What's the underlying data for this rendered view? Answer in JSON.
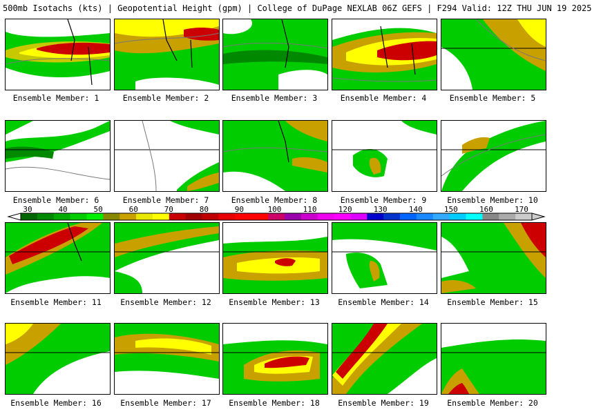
{
  "title": "500mb Isotachs (kts) | Geopotential Height (gpm) | College of DuPage NEXLAB   06Z GEFS | F294 Valid: 12Z THU JUN 19 2025",
  "legend": {
    "labels": [
      "30",
      "40",
      "50",
      "60",
      "70",
      "80",
      "90",
      "100",
      "110",
      "120",
      "130",
      "140",
      "150",
      "160",
      "170"
    ],
    "colors": [
      "#006600",
      "#008800",
      "#00aa00",
      "#00cc00",
      "#00ee00",
      "#888800",
      "#c8a000",
      "#e8e800",
      "#ffff00",
      "#c80000",
      "#a00000",
      "#c00000",
      "#e80000",
      "#ff0000",
      "#ff0000",
      "#cc0066",
      "#9900aa",
      "#cc00cc",
      "#ee00ee",
      "#ff00ff",
      "#dd00ff",
      "#0000cc",
      "#0033cc",
      "#0066ff",
      "#1a88ff",
      "#33aaff",
      "#00ccff",
      "#00ffff",
      "#888888",
      "#aaaaaa",
      "#cccccc"
    ]
  },
  "panels": [
    {
      "label": "Ensemble Member: 1",
      "intensity": 0.9
    },
    {
      "label": "Ensemble Member: 2",
      "intensity": 0.8
    },
    {
      "label": "Ensemble Member: 3",
      "intensity": 0.4
    },
    {
      "label": "Ensemble Member: 4",
      "intensity": 0.9
    },
    {
      "label": "Ensemble Member: 5",
      "intensity": 0.5
    },
    {
      "label": "Ensemble Member: 6",
      "intensity": 0.25
    },
    {
      "label": "Ensemble Member: 7",
      "intensity": 0.15
    },
    {
      "label": "Ensemble Member: 8",
      "intensity": 0.4
    },
    {
      "label": "Ensemble Member: 9",
      "intensity": 0.25
    },
    {
      "label": "Ensemble Member: 10",
      "intensity": 0.35
    },
    {
      "label": "Ensemble Member: 11",
      "intensity": 0.8
    },
    {
      "label": "Ensemble Member: 12",
      "intensity": 0.35
    },
    {
      "label": "Ensemble Member: 13",
      "intensity": 0.6
    },
    {
      "label": "Ensemble Member: 14",
      "intensity": 0.3
    },
    {
      "label": "Ensemble Member: 15",
      "intensity": 0.6
    },
    {
      "label": "Ensemble Member: 16",
      "intensity": 0.4
    },
    {
      "label": "Ensemble Member: 17",
      "intensity": 0.55
    },
    {
      "label": "Ensemble Member: 18",
      "intensity": 0.75
    },
    {
      "label": "Ensemble Member: 19",
      "intensity": 0.85
    },
    {
      "label": "Ensemble Member: 20",
      "intensity": 0.5
    }
  ]
}
